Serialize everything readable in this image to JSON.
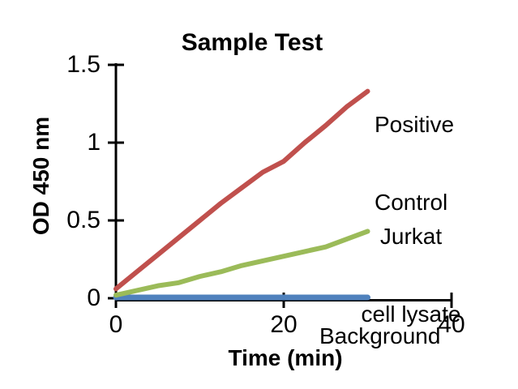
{
  "figure": {
    "title": "Sample Test",
    "x_axis_label": "Time (min)",
    "y_axis_label": "OD 450 nm"
  },
  "chart_data": {
    "type": "line",
    "title": "Sample Test",
    "xlabel": "Time (min)",
    "ylabel": "OD 450 nm",
    "xlim": [
      0,
      40
    ],
    "ylim": [
      0,
      1.5
    ],
    "grid": false,
    "legend_position": "inline-annotations",
    "x_ticks": [
      0,
      20,
      40
    ],
    "y_ticks": [
      0,
      0.5,
      1,
      1.5
    ],
    "x_tick_labels": [
      "0",
      "20",
      "40"
    ],
    "y_tick_labels": [
      "0",
      "0.5",
      "1",
      "1.5"
    ],
    "x": [
      0,
      2.5,
      5,
      7.5,
      10,
      12.5,
      15,
      17.5,
      20,
      22.5,
      25,
      27.5,
      30
    ],
    "series": [
      {
        "name": "Positive Control",
        "color": "#c0504d",
        "values": [
          0.06,
          0.17,
          0.28,
          0.39,
          0.5,
          0.61,
          0.71,
          0.81,
          0.88,
          1.0,
          1.11,
          1.23,
          1.33
        ]
      },
      {
        "name": "Jurkat cell lysate",
        "color": "#9bbb59",
        "values": [
          0.02,
          0.05,
          0.08,
          0.1,
          0.14,
          0.17,
          0.21,
          0.24,
          0.27,
          0.3,
          0.33,
          0.38,
          0.43
        ]
      },
      {
        "name": "Background",
        "color": "#4f81bd",
        "values": [
          0.005,
          0.005,
          0.005,
          0.005,
          0.005,
          0.005,
          0.005,
          0.005,
          0.005,
          0.005,
          0.005,
          0.005,
          0.005
        ]
      }
    ],
    "annotations": [
      {
        "name": "positive-control-label",
        "lines": [
          "Positive",
          "Control"
        ]
      },
      {
        "name": "jurkat-label",
        "lines": [
          "Jurkat",
          "cell lysate"
        ]
      },
      {
        "name": "background-label",
        "lines": [
          "Background"
        ]
      }
    ]
  }
}
